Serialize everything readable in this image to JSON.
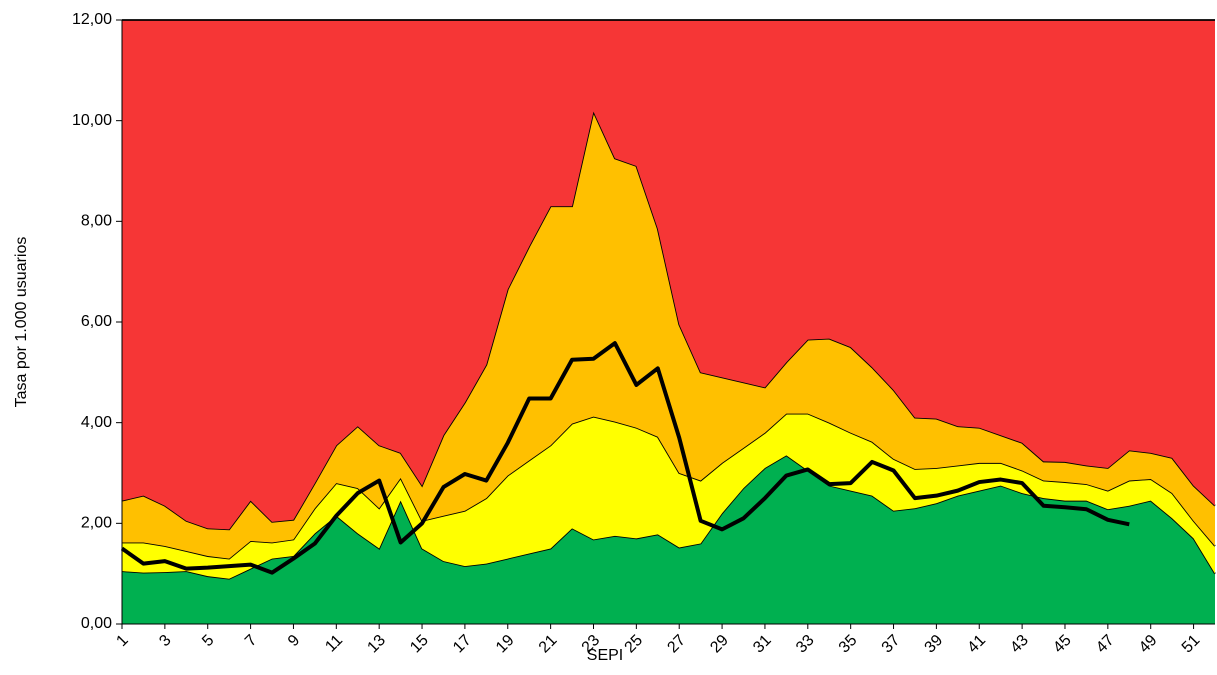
{
  "chart_data": {
    "type": "area",
    "stacked": true,
    "y_label": "Tasa por 1.000 usuarios",
    "x_label": "SEPI",
    "x": [
      1,
      2,
      3,
      4,
      5,
      6,
      7,
      8,
      9,
      10,
      11,
      12,
      13,
      14,
      15,
      16,
      17,
      18,
      19,
      20,
      21,
      22,
      23,
      24,
      25,
      26,
      27,
      28,
      29,
      30,
      31,
      32,
      33,
      34,
      35,
      36,
      37,
      38,
      39,
      40,
      41,
      42,
      43,
      44,
      45,
      46,
      47,
      48,
      49,
      50,
      51,
      52
    ],
    "xlim": [
      1,
      52
    ],
    "xticks": [
      1,
      3,
      5,
      7,
      9,
      11,
      13,
      15,
      17,
      19,
      21,
      23,
      25,
      27,
      29,
      31,
      33,
      35,
      37,
      39,
      41,
      43,
      45,
      47,
      49,
      51
    ],
    "ylim": [
      0,
      12
    ],
    "yticks": [
      {
        "value": 0,
        "label": "0,00"
      },
      {
        "value": 2,
        "label": "2,00"
      },
      {
        "value": 4,
        "label": "4,00"
      },
      {
        "value": 6,
        "label": "6,00"
      },
      {
        "value": 8,
        "label": "8,00"
      },
      {
        "value": 10,
        "label": "10,00"
      },
      {
        "value": 12,
        "label": "12,00"
      }
    ],
    "series": [
      {
        "color": "#00b050",
        "values": [
          1.05,
          1.02,
          1.03,
          1.05,
          0.95,
          0.9,
          1.1,
          1.3,
          1.35,
          1.8,
          2.15,
          1.8,
          1.5,
          2.45,
          1.5,
          1.25,
          1.15,
          1.2,
          1.3,
          1.4,
          1.5,
          1.9,
          1.68,
          1.75,
          1.7,
          1.78,
          1.52,
          1.6,
          2.2,
          2.7,
          3.1,
          3.35,
          3.05,
          2.75,
          2.65,
          2.55,
          2.25,
          2.3,
          2.4,
          2.55,
          2.65,
          2.75,
          2.6,
          2.5,
          2.45,
          2.45,
          2.28,
          2.35,
          2.45,
          2.1,
          1.7,
          1.0
        ]
      },
      {
        "color": "#ffff00",
        "values": [
          0.57,
          0.6,
          0.52,
          0.4,
          0.4,
          0.4,
          0.55,
          0.32,
          0.33,
          0.5,
          0.65,
          0.9,
          0.8,
          0.45,
          0.55,
          0.9,
          1.1,
          1.3,
          1.65,
          1.85,
          2.05,
          2.08,
          2.44,
          2.27,
          2.2,
          1.94,
          1.48,
          1.25,
          1.0,
          0.8,
          0.7,
          0.83,
          1.13,
          1.25,
          1.15,
          1.07,
          1.03,
          0.78,
          0.7,
          0.6,
          0.55,
          0.45,
          0.45,
          0.35,
          0.37,
          0.33,
          0.37,
          0.5,
          0.43,
          0.5,
          0.35,
          0.55
        ]
      },
      {
        "color": "#ffc000",
        "values": [
          0.83,
          0.93,
          0.8,
          0.6,
          0.55,
          0.58,
          0.8,
          0.41,
          0.39,
          0.5,
          0.75,
          1.23,
          1.25,
          0.5,
          0.7,
          1.6,
          2.15,
          2.65,
          3.7,
          4.25,
          4.75,
          4.32,
          6.06,
          5.23,
          5.2,
          4.13,
          2.95,
          2.15,
          1.7,
          1.3,
          0.9,
          1.02,
          1.47,
          1.67,
          1.7,
          1.48,
          1.37,
          1.02,
          0.98,
          0.78,
          0.7,
          0.55,
          0.55,
          0.38,
          0.4,
          0.37,
          0.45,
          0.6,
          0.52,
          0.7,
          0.7,
          0.8
        ]
      },
      {
        "color": "#f63636",
        "values": [
          9.55,
          9.45,
          9.65,
          9.95,
          10.1,
          10.12,
          9.55,
          9.97,
          9.93,
          9.2,
          8.45,
          8.07,
          8.45,
          8.6,
          9.25,
          8.25,
          7.6,
          6.85,
          5.35,
          4.5,
          3.7,
          3.7,
          1.82,
          2.75,
          2.9,
          4.15,
          6.05,
          7.0,
          7.1,
          7.2,
          7.3,
          6.8,
          6.35,
          6.33,
          6.5,
          6.9,
          7.35,
          7.9,
          7.92,
          8.07,
          8.1,
          8.25,
          8.4,
          8.77,
          8.78,
          8.85,
          8.9,
          8.55,
          8.6,
          8.7,
          9.25,
          9.65
        ]
      },
      {
        "type": "line",
        "color": "#000000",
        "values": [
          1.5,
          1.2,
          1.25,
          1.1,
          1.12,
          1.15,
          1.18,
          1.02,
          1.3,
          1.6,
          2.15,
          2.6,
          2.85,
          1.62,
          2.0,
          2.72,
          2.98,
          2.85,
          3.6,
          4.48,
          4.48,
          5.25,
          5.27,
          5.58,
          4.75,
          5.08,
          3.7,
          2.05,
          1.88,
          2.1,
          2.5,
          2.95,
          3.07,
          2.78,
          2.8,
          3.22,
          3.05,
          2.5,
          2.55,
          2.65,
          2.82,
          2.87,
          2.8,
          2.35,
          2.32,
          2.28,
          2.07,
          1.98,
          null,
          null,
          null,
          null
        ]
      }
    ]
  }
}
